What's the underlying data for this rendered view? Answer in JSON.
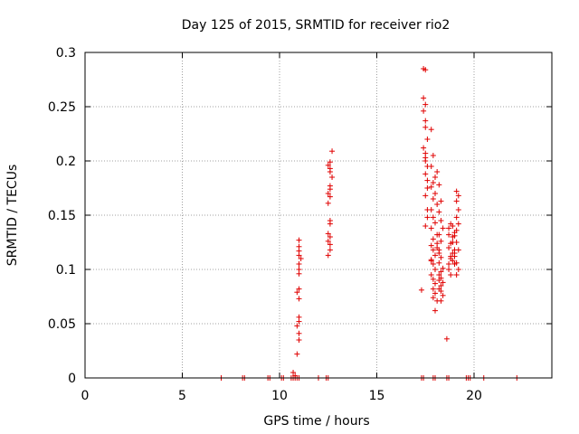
{
  "chart_data": {
    "type": "scatter",
    "title": "Day 125 of 2015, SRMTID for receiver rio2",
    "xlabel": "GPS time / hours",
    "ylabel": "SRMTID / TECUs",
    "xlim": [
      0,
      24
    ],
    "ylim": [
      0,
      0.3
    ],
    "xticks": [
      0,
      5,
      10,
      15,
      20
    ],
    "xtick_labels": [
      "0",
      "5",
      "10",
      "15",
      "20"
    ],
    "yticks": [
      0,
      0.05,
      0.1,
      0.15,
      0.2,
      0.25,
      0.3
    ],
    "ytick_labels": [
      "0",
      "0.05",
      "0.1",
      "0.15",
      "0.2",
      "0.25",
      "0.3"
    ],
    "grid": true,
    "marker": "+",
    "color": "#e00000",
    "x": [
      7.0,
      8.1,
      8.2,
      9.4,
      9.5,
      10.1,
      10.2,
      10.6,
      10.7,
      10.8,
      10.9,
      11.0,
      12.0,
      12.4,
      12.5,
      17.3,
      17.4,
      17.9,
      18.0,
      18.6,
      18.7,
      19.6,
      19.7,
      19.8,
      20.5,
      22.2,
      10.7,
      10.8,
      10.9,
      11.0,
      11.0,
      10.9,
      11.0,
      11.0,
      11.0,
      10.9,
      11.0,
      11.0,
      11.0,
      11.0,
      11.1,
      11.0,
      11.0,
      11.0,
      11.0,
      12.5,
      12.6,
      12.6,
      12.5,
      12.6,
      12.5,
      12.6,
      12.6,
      12.5,
      12.6,
      12.5,
      12.6,
      12.6,
      12.7,
      12.6,
      12.6,
      12.5,
      12.6,
      12.7,
      17.4,
      17.5,
      17.4,
      17.5,
      17.4,
      17.5,
      17.5,
      17.6,
      17.4,
      17.5,
      17.5,
      17.5,
      17.6,
      17.5,
      17.6,
      17.6,
      17.5,
      17.6,
      17.6,
      17.5,
      17.3,
      17.8,
      17.9,
      17.8,
      18.0,
      17.9,
      17.8,
      18.0,
      17.9,
      18.1,
      17.8,
      17.9,
      18.0,
      17.8,
      18.1,
      17.9,
      17.8,
      17.9,
      18.0,
      17.8,
      17.9,
      18.0,
      17.8,
      17.9,
      18.0,
      17.9,
      18.0,
      17.9,
      18.1,
      17.8,
      18.0,
      18.1,
      18.2,
      18.3,
      18.2,
      18.3,
      18.4,
      18.2,
      18.3,
      18.1,
      18.2,
      18.3,
      18.2,
      18.4,
      18.3,
      18.2,
      18.3,
      18.2,
      18.4,
      18.3,
      18.2,
      18.3,
      18.4,
      18.2,
      18.1,
      18.3,
      18.6,
      18.7,
      18.8,
      18.9,
      18.7,
      18.8,
      18.9,
      19.0,
      18.7,
      18.8,
      18.9,
      19.0,
      18.8,
      18.9,
      18.7,
      18.8,
      19.0,
      18.9,
      18.7,
      19.1,
      19.2,
      19.1,
      19.2,
      19.1,
      19.2,
      19.1,
      19.0,
      19.1,
      19.2,
      19.0,
      19.1,
      19.2,
      19.1,
      19.0
    ],
    "y": [
      0,
      0,
      0,
      0,
      0,
      0,
      0,
      0,
      0,
      0,
      0,
      0,
      0,
      0,
      0,
      0,
      0,
      0,
      0,
      0,
      0,
      0,
      0,
      0,
      0,
      0,
      0.005,
      0.002,
      0.022,
      0.035,
      0.041,
      0.048,
      0.052,
      0.056,
      0.073,
      0.079,
      0.082,
      0.096,
      0.1,
      0.105,
      0.11,
      0.113,
      0.117,
      0.121,
      0.127,
      0.113,
      0.118,
      0.123,
      0.126,
      0.13,
      0.133,
      0.142,
      0.145,
      0.161,
      0.167,
      0.17,
      0.174,
      0.177,
      0.185,
      0.19,
      0.193,
      0.196,
      0.199,
      0.209,
      0.285,
      0.284,
      0.258,
      0.252,
      0.246,
      0.237,
      0.231,
      0.22,
      0.212,
      0.207,
      0.203,
      0.2,
      0.195,
      0.188,
      0.182,
      0.175,
      0.168,
      0.155,
      0.148,
      0.14,
      0.081,
      0.229,
      0.205,
      0.195,
      0.185,
      0.18,
      0.176,
      0.17,
      0.165,
      0.16,
      0.155,
      0.148,
      0.143,
      0.138,
      0.132,
      0.128,
      0.122,
      0.118,
      0.113,
      0.109,
      0.105,
      0.1,
      0.095,
      0.091,
      0.087,
      0.082,
      0.078,
      0.074,
      0.071,
      0.108,
      0.062,
      0.19,
      0.178,
      0.163,
      0.153,
      0.145,
      0.138,
      0.132,
      0.126,
      0.12,
      0.115,
      0.111,
      0.106,
      0.101,
      0.098,
      0.095,
      0.092,
      0.09,
      0.088,
      0.085,
      0.082,
      0.08,
      0.076,
      0.118,
      0.124,
      0.071,
      0.036,
      0.105,
      0.11,
      0.115,
      0.12,
      0.124,
      0.13,
      0.134,
      0.138,
      0.142,
      0.14,
      0.118,
      0.112,
      0.108,
      0.1,
      0.095,
      0.105,
      0.125,
      0.132,
      0.172,
      0.168,
      0.163,
      0.155,
      0.148,
      0.142,
      0.136,
      0.131,
      0.125,
      0.118,
      0.112,
      0.106,
      0.1,
      0.095,
      0.115
    ]
  }
}
